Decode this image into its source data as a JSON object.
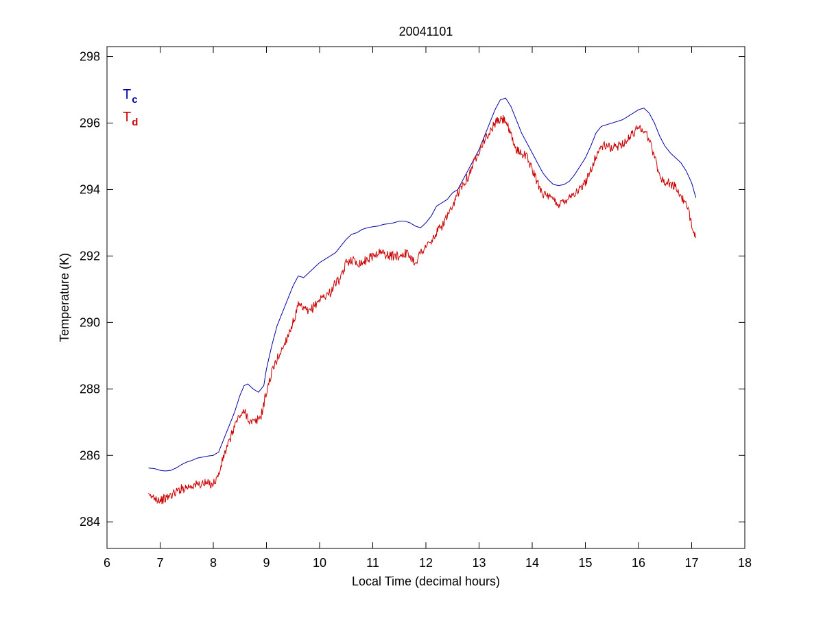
{
  "chart_data": {
    "type": "line",
    "title": "20041101",
    "xlabel": "Local Time (decimal hours)",
    "ylabel": "Temperature (K)",
    "xlim": [
      6,
      18
    ],
    "ylim": [
      283.2,
      298.3
    ],
    "xticks": [
      6,
      7,
      8,
      9,
      10,
      11,
      12,
      13,
      14,
      15,
      16,
      17,
      18
    ],
    "yticks": [
      284,
      286,
      288,
      290,
      292,
      294,
      296,
      298
    ],
    "grid": false,
    "legend_position": "top-left",
    "series": [
      {
        "name_main": "T",
        "name_sub": "c",
        "color": "#0000a8",
        "noise": 0.0,
        "points": [
          [
            6.78,
            285.62
          ],
          [
            6.9,
            285.6
          ],
          [
            7.0,
            285.55
          ],
          [
            7.1,
            285.53
          ],
          [
            7.2,
            285.55
          ],
          [
            7.3,
            285.62
          ],
          [
            7.4,
            285.72
          ],
          [
            7.5,
            285.8
          ],
          [
            7.6,
            285.85
          ],
          [
            7.7,
            285.92
          ],
          [
            7.8,
            285.95
          ],
          [
            7.9,
            285.98
          ],
          [
            8.0,
            286.0
          ],
          [
            8.1,
            286.1
          ],
          [
            8.2,
            286.5
          ],
          [
            8.3,
            286.9
          ],
          [
            8.4,
            287.3
          ],
          [
            8.5,
            287.8
          ],
          [
            8.58,
            288.1
          ],
          [
            8.65,
            288.15
          ],
          [
            8.75,
            288.0
          ],
          [
            8.85,
            287.9
          ],
          [
            8.95,
            288.1
          ],
          [
            9.0,
            288.6
          ],
          [
            9.1,
            289.3
          ],
          [
            9.2,
            289.9
          ],
          [
            9.3,
            290.3
          ],
          [
            9.4,
            290.7
          ],
          [
            9.5,
            291.1
          ],
          [
            9.6,
            291.4
          ],
          [
            9.7,
            291.35
          ],
          [
            9.8,
            291.5
          ],
          [
            9.9,
            291.65
          ],
          [
            10.0,
            291.8
          ],
          [
            10.1,
            291.9
          ],
          [
            10.2,
            292.0
          ],
          [
            10.3,
            292.1
          ],
          [
            10.4,
            292.3
          ],
          [
            10.5,
            292.5
          ],
          [
            10.6,
            292.65
          ],
          [
            10.7,
            292.7
          ],
          [
            10.8,
            292.8
          ],
          [
            10.9,
            292.85
          ],
          [
            11.0,
            292.88
          ],
          [
            11.1,
            292.9
          ],
          [
            11.2,
            292.95
          ],
          [
            11.3,
            292.97
          ],
          [
            11.4,
            293.0
          ],
          [
            11.5,
            293.05
          ],
          [
            11.6,
            293.05
          ],
          [
            11.7,
            293.0
          ],
          [
            11.8,
            292.9
          ],
          [
            11.9,
            292.85
          ],
          [
            12.0,
            293.0
          ],
          [
            12.1,
            293.2
          ],
          [
            12.2,
            293.5
          ],
          [
            12.3,
            293.6
          ],
          [
            12.4,
            293.7
          ],
          [
            12.5,
            293.9
          ],
          [
            12.6,
            294.0
          ],
          [
            12.7,
            294.3
          ],
          [
            12.8,
            294.6
          ],
          [
            12.9,
            294.9
          ],
          [
            13.0,
            295.2
          ],
          [
            13.1,
            295.6
          ],
          [
            13.2,
            296.0
          ],
          [
            13.3,
            296.4
          ],
          [
            13.4,
            296.7
          ],
          [
            13.5,
            296.75
          ],
          [
            13.6,
            296.5
          ],
          [
            13.7,
            296.1
          ],
          [
            13.8,
            295.7
          ],
          [
            13.9,
            295.4
          ],
          [
            14.0,
            295.1
          ],
          [
            14.1,
            294.8
          ],
          [
            14.2,
            294.5
          ],
          [
            14.3,
            294.3
          ],
          [
            14.4,
            294.15
          ],
          [
            14.5,
            294.12
          ],
          [
            14.6,
            294.15
          ],
          [
            14.7,
            294.25
          ],
          [
            14.8,
            294.45
          ],
          [
            14.9,
            294.7
          ],
          [
            15.0,
            294.95
          ],
          [
            15.1,
            295.3
          ],
          [
            15.2,
            295.7
          ],
          [
            15.3,
            295.9
          ],
          [
            15.4,
            295.95
          ],
          [
            15.5,
            296.0
          ],
          [
            15.6,
            296.05
          ],
          [
            15.7,
            296.1
          ],
          [
            15.8,
            296.2
          ],
          [
            15.9,
            296.3
          ],
          [
            16.0,
            296.4
          ],
          [
            16.1,
            296.45
          ],
          [
            16.2,
            296.3
          ],
          [
            16.3,
            296.0
          ],
          [
            16.4,
            295.6
          ],
          [
            16.5,
            295.3
          ],
          [
            16.6,
            295.1
          ],
          [
            16.7,
            294.95
          ],
          [
            16.8,
            294.8
          ],
          [
            16.9,
            294.55
          ],
          [
            17.0,
            294.2
          ],
          [
            17.08,
            293.75
          ]
        ]
      },
      {
        "name_main": "T",
        "name_sub": "d",
        "color": "#cc0000",
        "noise": 0.14,
        "points": [
          [
            6.78,
            284.75
          ],
          [
            6.9,
            284.75
          ],
          [
            7.0,
            284.65
          ],
          [
            7.1,
            284.7
          ],
          [
            7.2,
            284.8
          ],
          [
            7.3,
            284.9
          ],
          [
            7.4,
            285.0
          ],
          [
            7.5,
            285.05
          ],
          [
            7.6,
            285.1
          ],
          [
            7.7,
            285.12
          ],
          [
            7.8,
            285.15
          ],
          [
            7.9,
            285.15
          ],
          [
            8.0,
            285.15
          ],
          [
            8.1,
            285.4
          ],
          [
            8.2,
            286.0
          ],
          [
            8.3,
            286.4
          ],
          [
            8.4,
            286.9
          ],
          [
            8.5,
            287.2
          ],
          [
            8.6,
            287.3
          ],
          [
            8.7,
            287.0
          ],
          [
            8.8,
            287.0
          ],
          [
            8.9,
            287.2
          ],
          [
            9.0,
            287.9
          ],
          [
            9.1,
            288.5
          ],
          [
            9.2,
            288.9
          ],
          [
            9.3,
            289.2
          ],
          [
            9.4,
            289.6
          ],
          [
            9.5,
            290.0
          ],
          [
            9.6,
            290.5
          ],
          [
            9.7,
            290.4
          ],
          [
            9.8,
            290.3
          ],
          [
            9.9,
            290.5
          ],
          [
            10.0,
            290.7
          ],
          [
            10.1,
            290.8
          ],
          [
            10.2,
            290.9
          ],
          [
            10.3,
            291.2
          ],
          [
            10.4,
            291.3
          ],
          [
            10.5,
            291.8
          ],
          [
            10.6,
            291.9
          ],
          [
            10.7,
            291.8
          ],
          [
            10.8,
            291.8
          ],
          [
            10.9,
            291.9
          ],
          [
            11.0,
            292.0
          ],
          [
            11.1,
            292.1
          ],
          [
            11.2,
            292.1
          ],
          [
            11.3,
            292.0
          ],
          [
            11.4,
            292.0
          ],
          [
            11.5,
            292.0
          ],
          [
            11.6,
            292.1
          ],
          [
            11.7,
            292.0
          ],
          [
            11.8,
            291.8
          ],
          [
            11.9,
            292.1
          ],
          [
            12.0,
            292.3
          ],
          [
            12.1,
            292.4
          ],
          [
            12.2,
            292.7
          ],
          [
            12.3,
            292.9
          ],
          [
            12.4,
            293.2
          ],
          [
            12.5,
            293.4
          ],
          [
            12.6,
            293.9
          ],
          [
            12.7,
            294.2
          ],
          [
            12.8,
            294.4
          ],
          [
            12.9,
            294.8
          ],
          [
            13.0,
            295.2
          ],
          [
            13.1,
            295.5
          ],
          [
            13.2,
            295.7
          ],
          [
            13.3,
            296.0
          ],
          [
            13.4,
            296.1
          ],
          [
            13.5,
            296.1
          ],
          [
            13.6,
            295.6
          ],
          [
            13.7,
            295.2
          ],
          [
            13.8,
            295.1
          ],
          [
            13.9,
            295.0
          ],
          [
            14.0,
            294.6
          ],
          [
            14.1,
            294.2
          ],
          [
            14.2,
            293.9
          ],
          [
            14.3,
            293.75
          ],
          [
            14.4,
            293.7
          ],
          [
            14.5,
            293.55
          ],
          [
            14.6,
            293.65
          ],
          [
            14.7,
            293.8
          ],
          [
            14.8,
            293.9
          ],
          [
            14.9,
            294.0
          ],
          [
            15.0,
            294.2
          ],
          [
            15.1,
            294.6
          ],
          [
            15.2,
            295.0
          ],
          [
            15.3,
            295.3
          ],
          [
            15.4,
            295.3
          ],
          [
            15.5,
            295.25
          ],
          [
            15.6,
            295.3
          ],
          [
            15.7,
            295.4
          ],
          [
            15.8,
            295.5
          ],
          [
            15.9,
            295.7
          ],
          [
            16.0,
            295.9
          ],
          [
            16.1,
            295.8
          ],
          [
            16.2,
            295.5
          ],
          [
            16.3,
            295.0
          ],
          [
            16.4,
            294.4
          ],
          [
            16.5,
            294.2
          ],
          [
            16.6,
            294.2
          ],
          [
            16.7,
            294.05
          ],
          [
            16.8,
            293.8
          ],
          [
            16.9,
            293.5
          ],
          [
            17.0,
            293.0
          ],
          [
            17.08,
            292.55
          ]
        ]
      }
    ]
  }
}
